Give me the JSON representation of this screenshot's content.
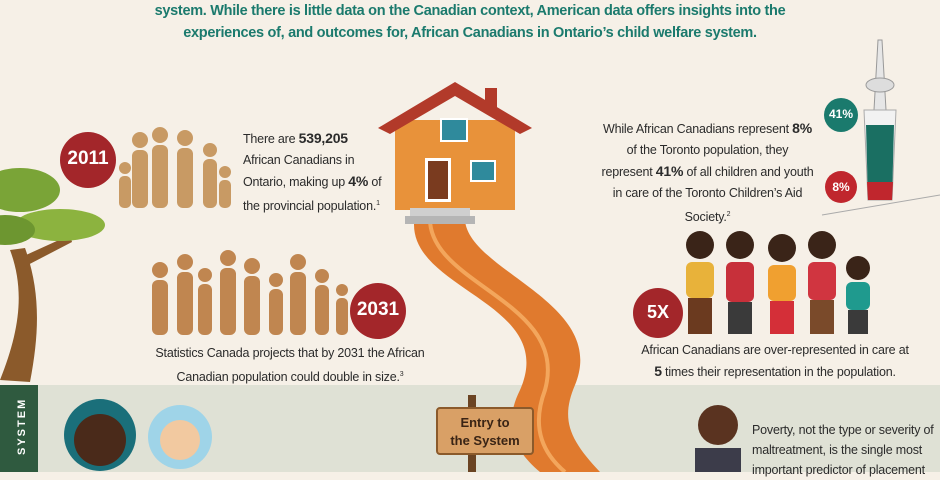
{
  "header": {
    "lines": [
      "system. While there is little data on the Canadian context, American data offers insights into the",
      "experiences of, and outcomes for, African Canadians in Ontario’s child welfare system."
    ]
  },
  "stat_2011": {
    "badge": "2011",
    "text": [
      {
        "text": "There are ",
        "bold": false
      },
      {
        "text": "539,205",
        "bold": true
      },
      {
        "text": " African Canadians in Ontario, making up ",
        "bold": false
      },
      {
        "text": "4%",
        "bold": true
      },
      {
        "text": " of the provincial population.",
        "bold": false
      },
      {
        "text": "1",
        "sup": true
      }
    ]
  },
  "stat_2031": {
    "badge": "2031",
    "text": [
      {
        "text": "Statistics Canada projects that by 2031 the African Canadian population could double in size.",
        "bold": false
      },
      {
        "text": "3",
        "sup": true
      }
    ]
  },
  "stat_toronto": {
    "badge_top": "41%",
    "badge_bottom": "8%",
    "text": [
      {
        "text": "While African Canadians represent ",
        "bold": false
      },
      {
        "text": "8%",
        "bold": true
      },
      {
        "text": " of the Toronto population, they represent ",
        "bold": false
      },
      {
        "text": "41%",
        "bold": true
      },
      {
        "text": " of all children and youth in care of the Toronto Children’s Aid Society.",
        "bold": false
      },
      {
        "text": "2",
        "sup": true
      }
    ]
  },
  "stat_5x": {
    "badge": "5X",
    "text": [
      {
        "text": "African Canadians are over-represented in care at ",
        "bold": false
      },
      {
        "text": "5",
        "bold": true
      },
      {
        "text": " times their representation in the population.",
        "bold": false
      }
    ]
  },
  "section": {
    "side_label": "SYSTEM",
    "sign": [
      "Entry to",
      "the System"
    ],
    "poverty_text": "Poverty, not the type or severity of maltreatment, is the single most important predictor of placement"
  }
}
